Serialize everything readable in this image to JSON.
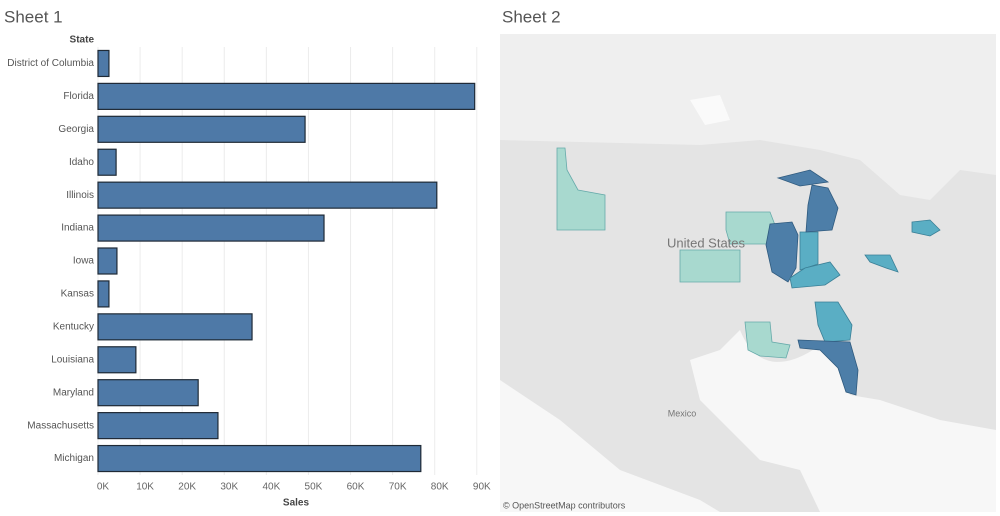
{
  "chart_data": {
    "type": "bar",
    "orientation": "horizontal",
    "title": "Sheet 1",
    "y_label": "State",
    "x_label": "Sales",
    "categories": [
      "District of Columbia",
      "Florida",
      "Georgia",
      "Idaho",
      "Illinois",
      "Indiana",
      "Iowa",
      "Kansas",
      "Kentucky",
      "Louisiana",
      "Maryland",
      "Massachusetts",
      "Michigan"
    ],
    "values": [
      2600,
      89500,
      49200,
      4300,
      80500,
      53700,
      4500,
      2600,
      36600,
      9000,
      23800,
      28500,
      76700
    ],
    "color": "#4e79a7",
    "xlim": [
      0,
      91000
    ],
    "xticks": [
      {
        "value": 0,
        "label": "0K"
      },
      {
        "value": 10000,
        "label": "10K"
      },
      {
        "value": 20000,
        "label": "20K"
      },
      {
        "value": 30000,
        "label": "30K"
      },
      {
        "value": 40000,
        "label": "40K"
      },
      {
        "value": 50000,
        "label": "50K"
      },
      {
        "value": 60000,
        "label": "60K"
      },
      {
        "value": 70000,
        "label": "70K"
      },
      {
        "value": 80000,
        "label": "80K"
      },
      {
        "value": 90000,
        "label": "90K"
      }
    ],
    "grid": true
  },
  "map": {
    "title": "Sheet 2",
    "labels": [
      "United States",
      "Mexico"
    ],
    "attribution": "© OpenStreetMap contributors"
  }
}
